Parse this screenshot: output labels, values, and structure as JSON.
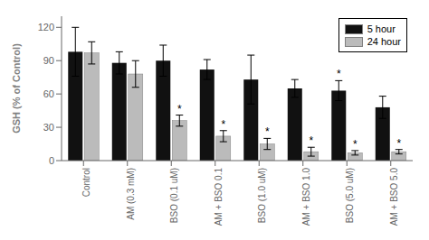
{
  "chart_data": {
    "type": "bar",
    "ylabel": "GSH (% of Control)",
    "categories": [
      "Control",
      "AM (0.3 mM)",
      "BSO (0.1 uM)",
      "AM + BSO 0.1",
      "BSO (1.0 uM)",
      "AM + BSO 1.0",
      "BSO (5.0 uM)",
      "AM + BSO 5.0"
    ],
    "series": [
      {
        "name": "5 hour",
        "color": "#111111",
        "values": [
          98,
          88,
          90,
          82,
          73,
          65,
          63,
          48
        ],
        "errors": [
          22,
          10,
          14,
          9,
          22,
          8,
          9,
          10
        ],
        "annotations": [
          null,
          null,
          null,
          null,
          null,
          null,
          "*",
          null
        ]
      },
      {
        "name": "24 hour",
        "color": "#bbbbbb",
        "values": [
          97,
          78,
          36,
          22,
          15,
          8,
          7,
          8
        ],
        "errors": [
          10,
          12,
          5,
          5,
          5,
          4,
          2,
          2
        ],
        "annotations": [
          null,
          null,
          "*",
          "*",
          "*",
          "*",
          "*",
          "*"
        ]
      }
    ],
    "ylim": [
      0,
      130
    ],
    "yticks": [
      0,
      30,
      60,
      90,
      120
    ],
    "legend": "upper right",
    "grid": false
  }
}
